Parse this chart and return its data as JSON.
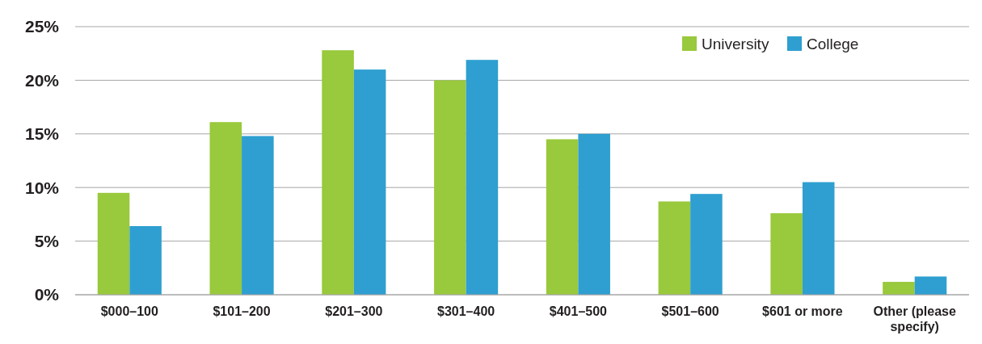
{
  "chart_data": {
    "type": "bar",
    "categories": [
      "$000–100",
      "$101–200",
      "$201–300",
      "$301–400",
      "$401–500",
      "$501–600",
      "$601 or more",
      "Other (please specify)"
    ],
    "series": [
      {
        "name": "University",
        "color": "#99c93c",
        "values": [
          9.5,
          16.1,
          22.8,
          20.0,
          14.5,
          8.7,
          7.6,
          1.2
        ]
      },
      {
        "name": "College",
        "color": "#2e9fd0",
        "values": [
          6.4,
          14.8,
          21.0,
          21.9,
          15.0,
          9.4,
          10.5,
          1.7
        ]
      }
    ],
    "ylim": [
      0,
      25
    ],
    "yticks": [
      {
        "value": 0,
        "label": "0%"
      },
      {
        "value": 5,
        "label": "5%"
      },
      {
        "value": 10,
        "label": "10%"
      },
      {
        "value": 15,
        "label": "15%"
      },
      {
        "value": 20,
        "label": "20%"
      },
      {
        "value": 25,
        "label": "25%"
      }
    ],
    "grid": "y",
    "legend": "top right"
  }
}
